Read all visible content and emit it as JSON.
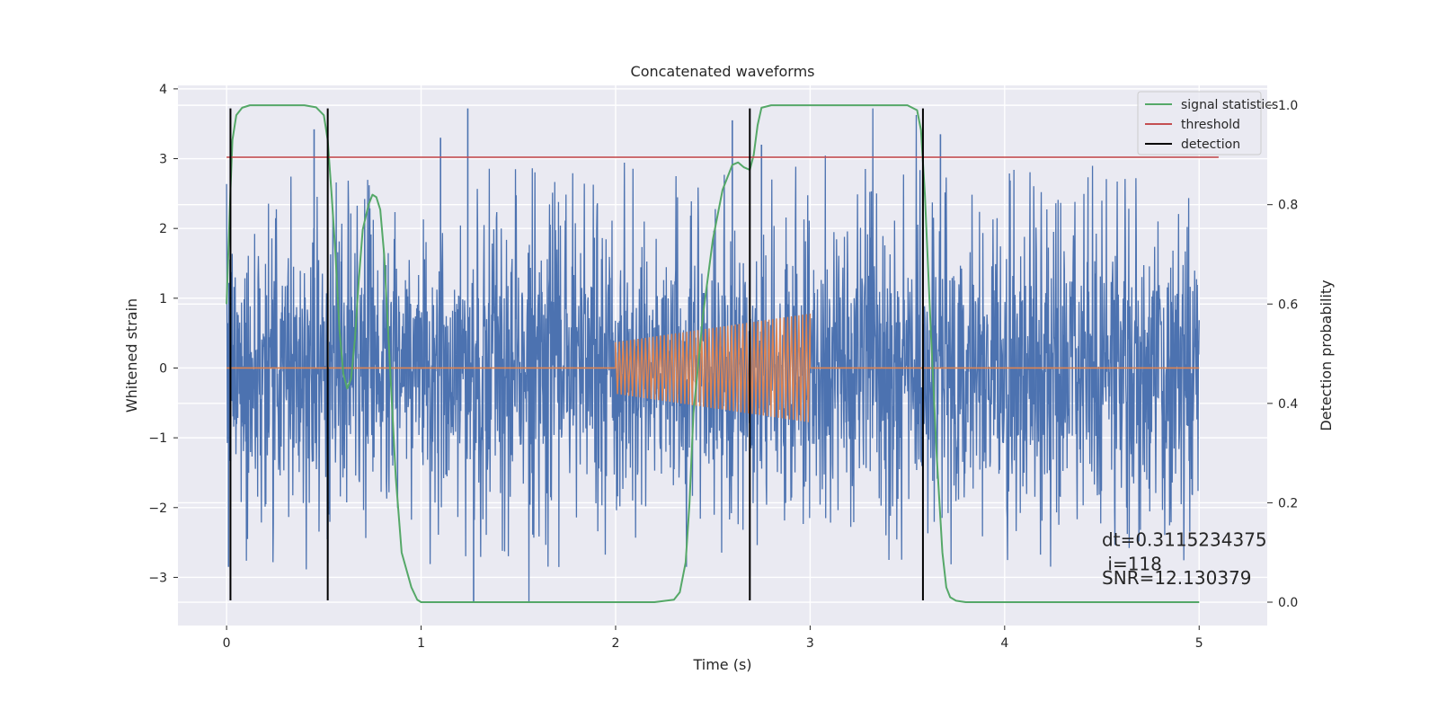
{
  "chart_data": {
    "type": "line",
    "title": "Concatenated waveforms",
    "xlabel": "Time (s)",
    "ylabel": "Whitened strain",
    "y2label": "Detection probability",
    "xlim": [
      -0.25,
      5.35
    ],
    "ylim": [
      -3.69,
      4.05
    ],
    "y2lim": [
      -0.047,
      1.04
    ],
    "x_ticks": [
      0,
      1,
      2,
      3,
      4,
      5
    ],
    "y_ticks": [
      -3,
      -2,
      -1,
      0,
      1,
      2,
      3,
      4
    ],
    "y2_ticks": [
      0.0,
      0.2,
      0.4,
      0.6,
      0.8,
      1.0
    ],
    "x_tick_labels": [
      "0",
      "1",
      "2",
      "3",
      "4",
      "5"
    ],
    "y_tick_labels": [
      "−3",
      "−2",
      "−1",
      "0",
      "1",
      "2",
      "3",
      "4"
    ],
    "y2_tick_labels": [
      "0.0",
      "0.2",
      "0.4",
      "0.6",
      "0.8",
      "1.0"
    ],
    "grid": true,
    "legend_position": "top-right",
    "legend": [
      {
        "name": "signal statistics",
        "color": "#55a868"
      },
      {
        "name": "threshold",
        "color": "#c44e52"
      },
      {
        "name": "detection",
        "color": "#000000"
      }
    ],
    "series": [
      {
        "name": "whitened strain",
        "axis": "left",
        "color": "#4c72b0",
        "kind": "noise",
        "x_range": [
          0,
          5
        ],
        "envelope": [
          -3.35,
          3.72
        ],
        "spikes": [
          {
            "x": 1.24,
            "y": 3.72
          },
          {
            "x": 1.27,
            "y": -3.35
          },
          {
            "x": 2.6,
            "y": 3.55
          },
          {
            "x": 0.45,
            "y": 3.42
          },
          {
            "x": 3.67,
            "y": 3.35
          },
          {
            "x": 1.1,
            "y": 3.3
          },
          {
            "x": 0.01,
            "y": -2.85
          },
          {
            "x": 2.75,
            "y": 3.2
          }
        ]
      },
      {
        "name": "injected waveform",
        "axis": "left",
        "color": "#dd8452",
        "kind": "chirp",
        "flat_range": [
          0,
          5
        ],
        "chirp_range": [
          2.0,
          3.0
        ],
        "amplitude_start": 0.37,
        "amplitude_end": 0.78,
        "cycles": 52
      },
      {
        "name": "signal statistics",
        "axis": "right",
        "color": "#55a868",
        "x": [
          0.0,
          0.02,
          0.03,
          0.05,
          0.08,
          0.12,
          0.2,
          0.3,
          0.4,
          0.46,
          0.5,
          0.52,
          0.54,
          0.56,
          0.58,
          0.6,
          0.62,
          0.64,
          0.66,
          0.68,
          0.7,
          0.73,
          0.75,
          0.77,
          0.79,
          0.81,
          0.83,
          0.85,
          0.87,
          0.9,
          0.95,
          0.98,
          1.0,
          1.05,
          1.5,
          2.0,
          2.2,
          2.3,
          2.33,
          2.36,
          2.38,
          2.4,
          2.45,
          2.5,
          2.55,
          2.6,
          2.63,
          2.66,
          2.69,
          2.71,
          2.73,
          2.75,
          2.8,
          3.0,
          3.5,
          3.55,
          3.57,
          3.59,
          3.62,
          3.65,
          3.68,
          3.7,
          3.72,
          3.75,
          3.8,
          4.0,
          4.5,
          5.0
        ],
        "y": [
          0.6,
          0.83,
          0.93,
          0.98,
          0.995,
          1.0,
          1.0,
          1.0,
          1.0,
          0.996,
          0.98,
          0.93,
          0.82,
          0.7,
          0.55,
          0.46,
          0.43,
          0.45,
          0.53,
          0.65,
          0.75,
          0.8,
          0.82,
          0.815,
          0.79,
          0.7,
          0.55,
          0.4,
          0.25,
          0.1,
          0.03,
          0.005,
          0.0,
          0.0,
          0.0,
          0.0,
          0.0,
          0.005,
          0.02,
          0.08,
          0.2,
          0.38,
          0.58,
          0.73,
          0.83,
          0.88,
          0.885,
          0.875,
          0.87,
          0.9,
          0.96,
          0.995,
          1.0,
          1.0,
          1.0,
          0.99,
          0.95,
          0.82,
          0.55,
          0.3,
          0.1,
          0.03,
          0.01,
          0.003,
          0.0,
          0.0,
          0.0,
          0.0
        ]
      },
      {
        "name": "threshold",
        "axis": "left",
        "color": "#c44e52",
        "x": [
          0.0,
          5.1
        ],
        "y": [
          3.02,
          3.02
        ]
      },
      {
        "name": "detection",
        "axis": "left",
        "color": "#000000",
        "kind": "vlines",
        "x": [
          0.02,
          0.52,
          2.69,
          3.58
        ],
        "y_range": [
          -3.33,
          3.72
        ]
      }
    ],
    "annotations": [
      {
        "text": "dt=0.3115234375",
        "x": 4.5,
        "y": -2.55
      },
      {
        "text": " i=118",
        "x": 4.5,
        "y": -2.9
      },
      {
        "text": "SNR=12.130379",
        "x": 4.5,
        "y": -3.1
      }
    ]
  }
}
